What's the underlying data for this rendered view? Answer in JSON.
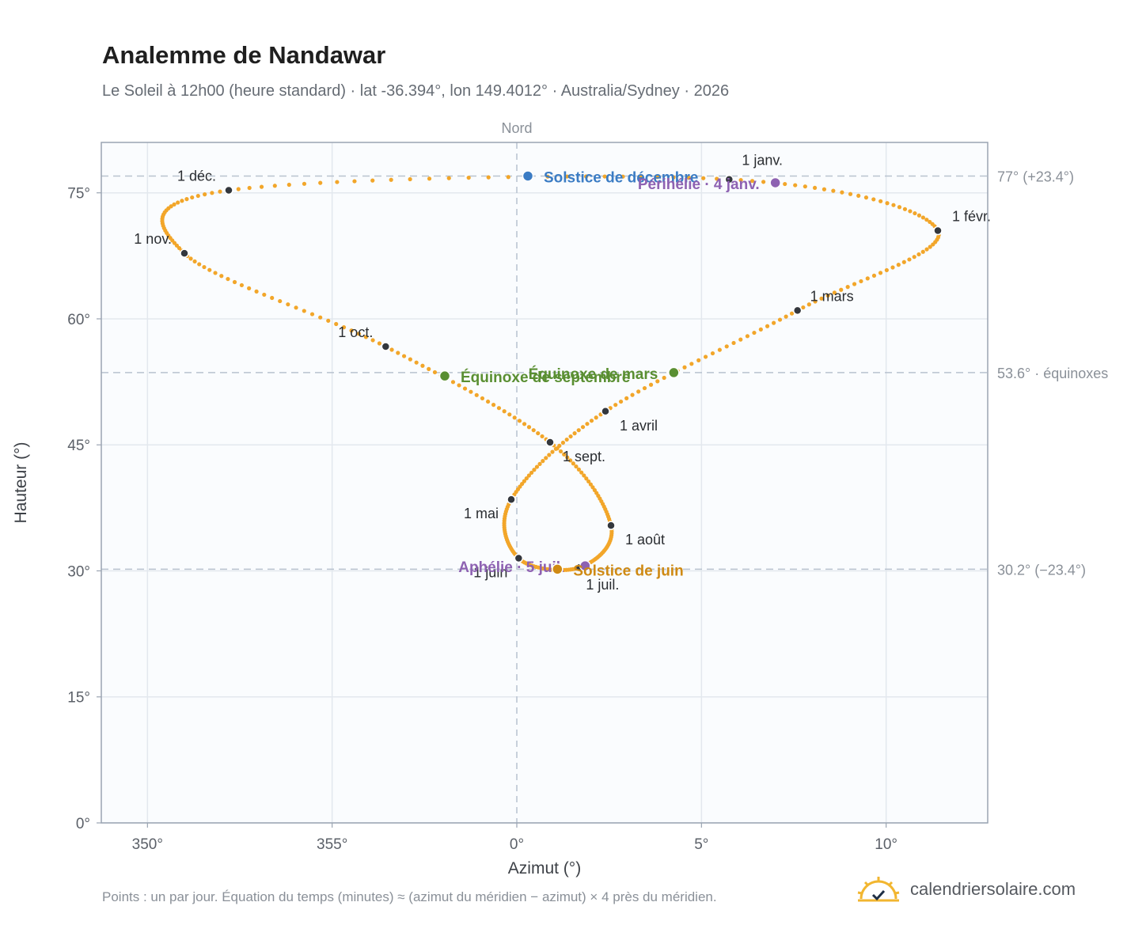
{
  "header": {
    "title": "Analemme de Nandawar",
    "subtitle": "Le Soleil à 12h00 (heure standard) · lat -36.394°, lon 149.4012° · Australia/Sydney · 2026"
  },
  "footer": {
    "note": "Points : un par jour. Équation du temps (minutes) ≈ (azimut du méridien − azimut) × 4 près du méridien.",
    "brand": "calendriersolaire.com"
  },
  "colors": {
    "curve": "#f2a62a",
    "month_dot": "#33373d",
    "december_solstice": "#3b7cc4",
    "june_solstice": "#cf8a14",
    "equinox": "#5a8f32",
    "apsides": "#8e62b2"
  },
  "chart_data": {
    "type": "scatter",
    "title": "Analemme de Nandawar",
    "xlabel": "Azimut (°)",
    "ylabel": "Hauteur (°)",
    "x_ticks": [
      "350°",
      "355°",
      "0°",
      "5°",
      "10°"
    ],
    "y_ticks": [
      "0°",
      "15°",
      "30°",
      "45°",
      "60°",
      "75°"
    ],
    "north_label": "Nord",
    "xlim": [
      -11.25,
      12.75
    ],
    "ylim": [
      0,
      81
    ],
    "grid": true,
    "reference_lines": [
      {
        "value": 77.0,
        "label": "77° (+23.4°)"
      },
      {
        "value": 53.6,
        "label": "53.6° · équinoxes"
      },
      {
        "value": 30.2,
        "label": "30.2° (−23.4°)"
      }
    ],
    "month_markers": [
      {
        "label": "1 janv.",
        "az": 5.75,
        "alt": 76.6
      },
      {
        "label": "1 févr.",
        "az": 11.4,
        "alt": 70.5
      },
      {
        "label": "1 mars",
        "az": 7.6,
        "alt": 61.0
      },
      {
        "label": "1 avril",
        "az": 2.4,
        "alt": 49.0
      },
      {
        "label": "1 mai",
        "az": -0.15,
        "alt": 38.5
      },
      {
        "label": "1 juin",
        "az": 0.05,
        "alt": 31.5
      },
      {
        "label": "1 juil.",
        "az": 1.7,
        "alt": 30.4
      },
      {
        "label": "1 août",
        "az": 2.55,
        "alt": 35.4
      },
      {
        "label": "1 sept.",
        "az": 0.9,
        "alt": 45.3
      },
      {
        "label": "1 oct.",
        "az": -3.55,
        "alt": 56.7
      },
      {
        "label": "1 nov.",
        "az": -9.0,
        "alt": 67.8
      },
      {
        "label": "1 déc.",
        "az": -7.8,
        "alt": 75.3
      }
    ],
    "events": [
      {
        "label": "Solstice de décembre",
        "az": 0.3,
        "alt": 77.0,
        "color": "#3b7cc4"
      },
      {
        "label": "Périhélie · 4 janv.",
        "az": 7.0,
        "alt": 76.2,
        "color": "#8e62b2"
      },
      {
        "label": "Équinoxe de mars",
        "az": 4.25,
        "alt": 53.6,
        "color": "#5a8f32"
      },
      {
        "label": "Équinoxe de septembre",
        "az": -1.95,
        "alt": 53.2,
        "color": "#5a8f32"
      },
      {
        "label": "Aphélie · 5 juil.",
        "az": 1.85,
        "alt": 30.6,
        "color": "#8e62b2"
      },
      {
        "label": "Solstice de juin",
        "az": 1.1,
        "alt": 30.2,
        "color": "#cf8a14"
      }
    ]
  }
}
